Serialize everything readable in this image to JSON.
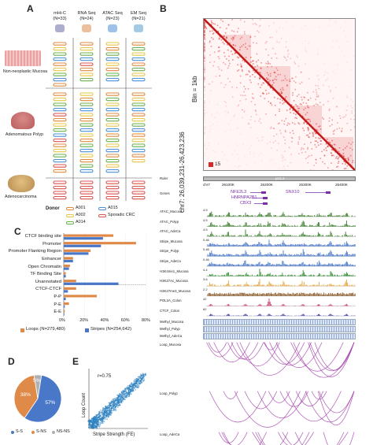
{
  "panels": {
    "A": "A",
    "B": "B",
    "C": "C",
    "D": "D",
    "E": "E"
  },
  "panelA": {
    "columns": [
      {
        "name": "mHi-C",
        "n": "(N=33)"
      },
      {
        "name": "RNA Seq",
        "n": "(N=24)"
      },
      {
        "name": "ATAC Seq",
        "n": "(N=23)"
      },
      {
        "name": "EM Seq",
        "n": "(N=21)"
      }
    ],
    "rows": [
      "Non-neoplastic Mucosa",
      "Adenomatous Polyp",
      "Adenocarcinoma"
    ],
    "legend_title": "Donor",
    "donors": [
      {
        "label": "A001",
        "color": "#e08a3c"
      },
      {
        "label": "A015",
        "color": "#4a90d9"
      },
      {
        "label": "A002",
        "color": "#e8c547"
      },
      {
        "label": "Sporadic CRC",
        "color": "#d9534f"
      },
      {
        "label": "A014",
        "color": "#6ab04c"
      }
    ]
  },
  "panelB": {
    "ylabel_line1": "chr7: 26,039,231-26,423,236",
    "ylabel_line2": "Bin = 1kb",
    "scale_value": "15",
    "ruler_label": "Ruler",
    "ruler_band": "p15.2",
    "chrom": "chr7",
    "ticks": [
      "26100K",
      "26200K",
      "26300K",
      "26400K"
    ],
    "genes_label": "Genes",
    "genes": [
      "NFE2L3",
      "HNRNPA2B1",
      "CBX3",
      "SNX10"
    ],
    "tracks": [
      {
        "label": "ATAC_Mucosa",
        "max": "4.5",
        "color": "#3a7d2c"
      },
      {
        "label": "ATAC_Polyp",
        "max": "4.5",
        "color": "#3a7d2c"
      },
      {
        "label": "ATAC_AdeCa",
        "max": "4.5",
        "color": "#3a7d2c"
      },
      {
        "label": "Stripe_Mucosa",
        "max": "0.46",
        "color": "#4a78c8"
      },
      {
        "label": "Stripe_Polyp",
        "max": "0.46",
        "color": "#4a78c8"
      },
      {
        "label": "Stripe_AdeCa",
        "max": "0.46",
        "color": "#4a78c8"
      },
      {
        "label": "H3K4me1_Mucosa",
        "max": "4.4",
        "color": "#2e8b2e"
      },
      {
        "label": "H3K27Ac_Mucosa",
        "max": "3.6",
        "color": "#e6a23c"
      },
      {
        "label": "H3K27me3_Mucosa",
        "max": "2.2",
        "color": "#8b5a2b"
      },
      {
        "label": "POL2A_Colon",
        "max": "42",
        "color": "#cc3366"
      },
      {
        "label": "CTCF_Colon",
        "max": "62",
        "color": "#333399"
      }
    ],
    "methyl": [
      "Methyl_Mucosa",
      "Methyl_Polyp",
      "Methyl_AdeCa"
    ],
    "loops": [
      "Loop_Mucosa",
      "Loop_Polyp",
      "Loop_AdeCa"
    ]
  },
  "chart_data": [
    {
      "type": "bar",
      "panel": "C",
      "categories": [
        "CTCF binding site",
        "Promoter",
        "Promoter Flanking Region",
        "Enhancer",
        "Open Chromatin",
        "TF Binding Site",
        "Unannotated",
        "CTCF-CTCF",
        "P-P",
        "P-E",
        "E-E"
      ],
      "series": [
        {
          "name": "Loops (N=279,480)",
          "color": "#e08a4a",
          "values": [
            48,
            70,
            26,
            9,
            6,
            2,
            12,
            12,
            32,
            5,
            1
          ]
        },
        {
          "name": "Stripes (N=254,642)",
          "color": "#4a78c8",
          "values": [
            38,
            36,
            24,
            9,
            5,
            2,
            53,
            4,
            2,
            1,
            0.5
          ]
        }
      ],
      "ticks": [
        "0%",
        "20%",
        "40%",
        "60%",
        "80%"
      ],
      "xlim": [
        0,
        80
      ]
    },
    {
      "type": "pie",
      "panel": "D",
      "labels": [
        "S-S",
        "S-NS",
        "NS-NS"
      ],
      "values": [
        57,
        38,
        5
      ],
      "slice_labels": [
        "57%",
        "38%",
        "5%"
      ],
      "colors": [
        "#4a78c8",
        "#e08a4a",
        "#b0b0b0"
      ]
    },
    {
      "type": "scatter",
      "panel": "E",
      "xlabel": "Stripe Strength (FE)",
      "ylabel": "Loop Count",
      "annotation": "r=0.75",
      "color": "#2a7fc0"
    }
  ]
}
